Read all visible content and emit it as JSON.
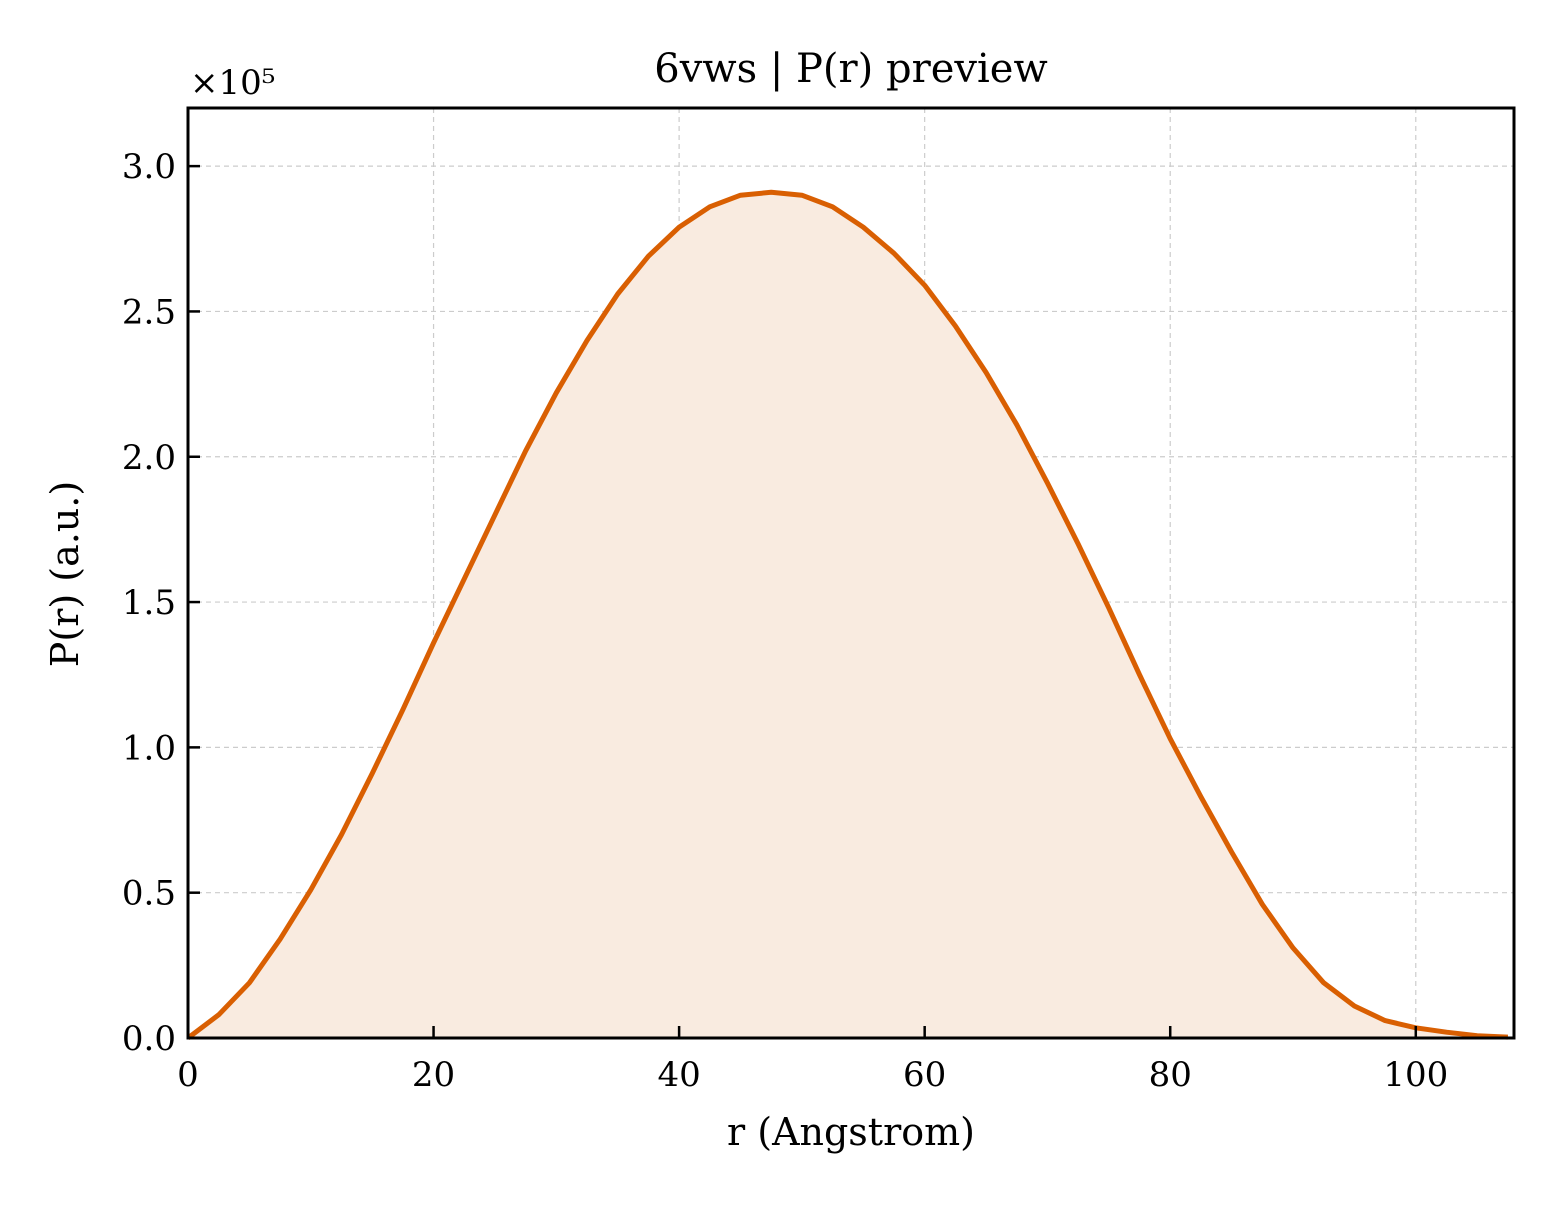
{
  "chart_data": {
    "type": "area",
    "title": "6vws | P(r) preview",
    "xlabel": "r (Angstrom)",
    "ylabel": "P(r) (a.u.)",
    "y_offset_label": "×10⁵",
    "xlim": [
      0,
      108
    ],
    "ylim": [
      0,
      3.2
    ],
    "x_ticks": [
      0,
      20,
      40,
      60,
      80,
      100
    ],
    "x_tick_labels": [
      "0",
      "20",
      "40",
      "60",
      "80",
      "100"
    ],
    "y_ticks": [
      0,
      0.5,
      1.0,
      1.5,
      2.0,
      2.5,
      3.0
    ],
    "y_tick_labels": [
      "0.0",
      "0.5",
      "1.0",
      "1.5",
      "2.0",
      "2.5",
      "3.0"
    ],
    "grid": true,
    "line_color": "#d95f02",
    "fill_color": "#f9ebe0",
    "series": [
      {
        "x": [
          0,
          2.5,
          5,
          7.5,
          10,
          12.5,
          15,
          17.5,
          20,
          22.5,
          25,
          27.5,
          30,
          32.5,
          35,
          37.5,
          40,
          42.5,
          45,
          47.5,
          50,
          52.5,
          55,
          57.5,
          60,
          62.5,
          65,
          67.5,
          70,
          72.5,
          75,
          77.5,
          80,
          82.5,
          85,
          87.5,
          90,
          92.5,
          95,
          97.5,
          100,
          102.5,
          105,
          107.5
        ],
        "y": [
          0.0,
          0.08,
          0.19,
          0.34,
          0.51,
          0.7,
          0.91,
          1.13,
          1.36,
          1.58,
          1.8,
          2.02,
          2.22,
          2.4,
          2.56,
          2.69,
          2.79,
          2.86,
          2.9,
          2.91,
          2.9,
          2.86,
          2.79,
          2.7,
          2.59,
          2.45,
          2.29,
          2.11,
          1.91,
          1.7,
          1.48,
          1.25,
          1.03,
          0.83,
          0.64,
          0.46,
          0.31,
          0.19,
          0.11,
          0.06,
          0.035,
          0.02,
          0.008,
          0.003
        ]
      }
    ]
  }
}
